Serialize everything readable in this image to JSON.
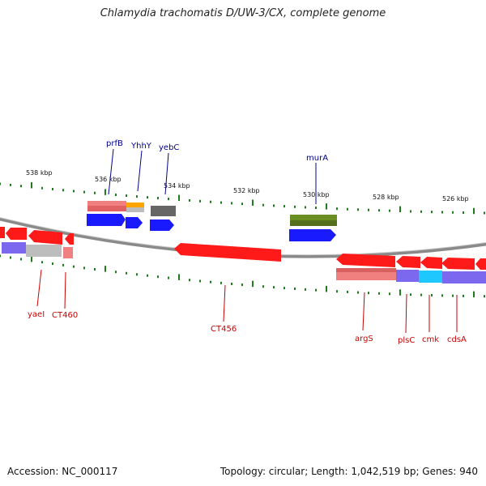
{
  "title": "Chlamydia trachomatis D/UW-3/CX, complete genome",
  "accession": "Accession: NC_000117",
  "topology": "Topology: circular; Length: 1,042,519 bp; Genes: 940",
  "scale_labels": [
    "538 kbp",
    "536 kbp",
    "534 kbp",
    "532 kbp",
    "530 kbp",
    "528 kbp",
    "526 kbp"
  ],
  "top_genes": [
    "prfB",
    "YhhY",
    "yebC",
    "murA"
  ],
  "bottom_genes": [
    "yaeI",
    "CT460",
    "CT456",
    "argS",
    "plsC",
    "cmk",
    "cdsA"
  ],
  "colors": {
    "forward_cds": "#1a1aff",
    "reverse_cds": "#ff1a1a",
    "top_label": "#00008b",
    "bottom_label": "#c80000",
    "tick": "#1e7b1e",
    "backbone": "#8a8a8a",
    "olive": "#6b8e23",
    "salmon": "#f08080",
    "purple": "#7b68ee",
    "cyan": "#1ec8ff",
    "gray": "#bdbdbd",
    "orange": "#ffa500",
    "dark_gray": "#666666"
  }
}
